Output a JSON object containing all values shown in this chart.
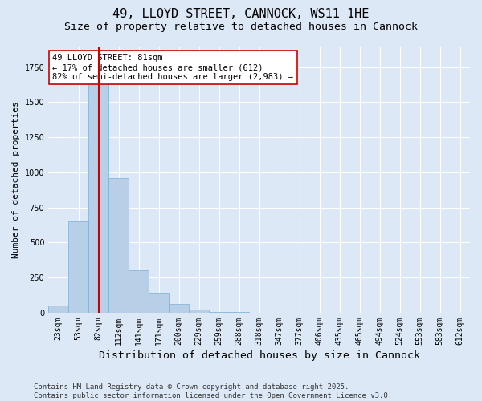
{
  "title": "49, LLOYD STREET, CANNOCK, WS11 1HE",
  "subtitle": "Size of property relative to detached houses in Cannock",
  "xlabel": "Distribution of detached houses by size in Cannock",
  "ylabel": "Number of detached properties",
  "categories": [
    "23sqm",
    "53sqm",
    "82sqm",
    "112sqm",
    "141sqm",
    "171sqm",
    "200sqm",
    "229sqm",
    "259sqm",
    "288sqm",
    "318sqm",
    "347sqm",
    "377sqm",
    "406sqm",
    "435sqm",
    "465sqm",
    "494sqm",
    "524sqm",
    "553sqm",
    "583sqm",
    "612sqm"
  ],
  "values": [
    50,
    650,
    1700,
    960,
    300,
    140,
    60,
    20,
    5,
    3,
    2,
    2,
    1,
    1,
    1,
    1,
    0,
    0,
    0,
    0,
    0
  ],
  "bar_color": "#b8cfe8",
  "bar_edgecolor": "#7aafd4",
  "highlight_index": 2,
  "highlight_color": "#cc0000",
  "annotation_text": "49 LLOYD STREET: 81sqm\n← 17% of detached houses are smaller (612)\n82% of semi-detached houses are larger (2,983) →",
  "annotation_box_color": "#ffffff",
  "annotation_box_edgecolor": "#cc0000",
  "background_color": "#dce8f5",
  "plot_background": "#dce8f5",
  "ylim": [
    0,
    1900
  ],
  "footer": "Contains HM Land Registry data © Crown copyright and database right 2025.\nContains public sector information licensed under the Open Government Licence v3.0.",
  "title_fontsize": 11,
  "subtitle_fontsize": 9.5,
  "xlabel_fontsize": 9.5,
  "ylabel_fontsize": 8,
  "tick_fontsize": 7,
  "footer_fontsize": 6.5,
  "annotation_fontsize": 7.5
}
